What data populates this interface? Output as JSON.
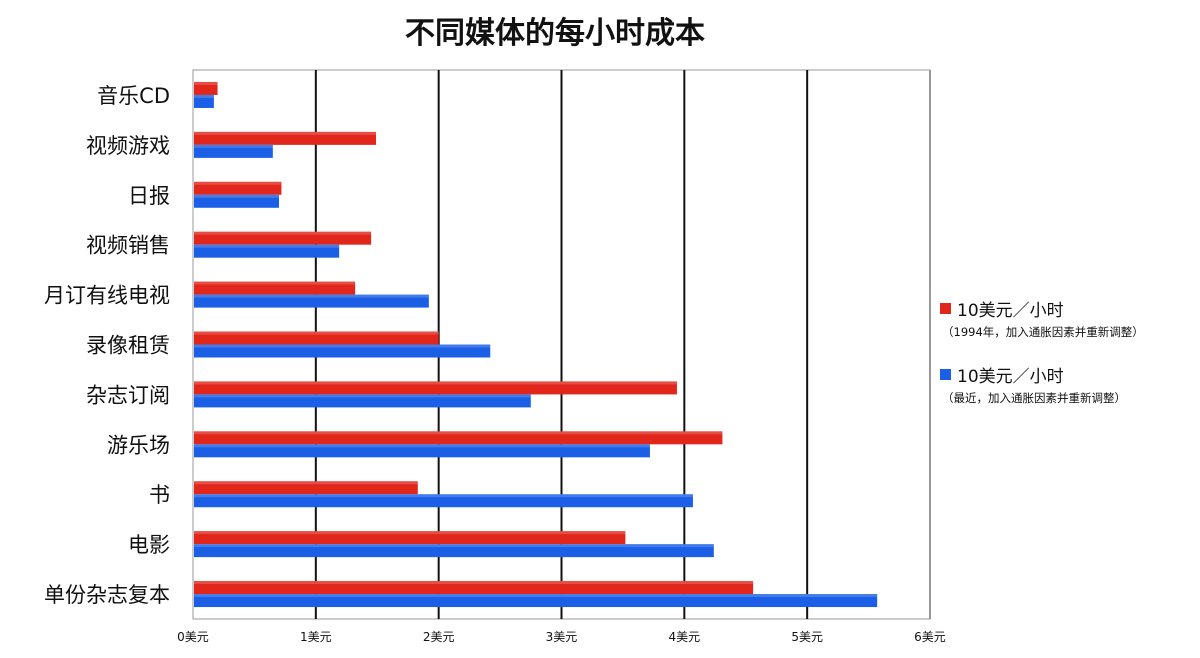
{
  "chart_data": {
    "type": "bar",
    "orientation": "horizontal",
    "title": "不同媒体的每小时成本",
    "categories": [
      "音乐CD",
      "视频游戏",
      "日报",
      "视频销售",
      "月订有线电视",
      "录像租赁",
      "杂志订阅",
      "游乐场",
      "书",
      "电影",
      "单份杂志复本"
    ],
    "series": [
      {
        "name": "10美元／小时",
        "note": "（1994年，加入通胀因素并重新调整）",
        "color": "#e1261c",
        "values": [
          0.2,
          1.49,
          0.72,
          1.45,
          1.32,
          2.0,
          3.94,
          4.31,
          1.83,
          3.52,
          4.56
        ]
      },
      {
        "name": "10美元／小时",
        "note": "（最近，加入通胀因素并重新调整）",
        "color": "#1a5fe6",
        "values": [
          0.17,
          0.65,
          0.7,
          1.19,
          1.92,
          2.42,
          2.75,
          3.72,
          4.07,
          4.24,
          5.57
        ]
      }
    ],
    "xlim": [
      0,
      6
    ],
    "xticks": [
      "0美元",
      "1美元",
      "2美元",
      "3美元",
      "4美元",
      "5美元",
      "6美元"
    ],
    "grid": true,
    "legend_position": "right"
  }
}
